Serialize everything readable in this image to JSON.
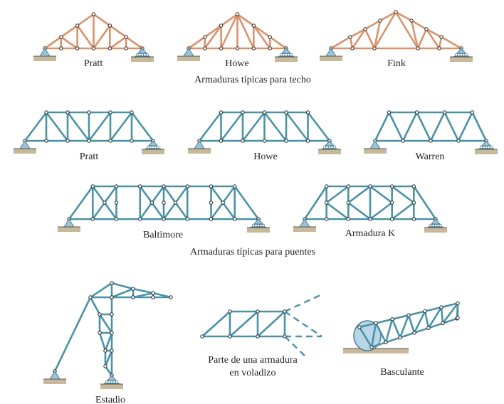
{
  "roof_trusses": {
    "caption": "Armaduras típicas para techo",
    "items": [
      {
        "label": "Pratt"
      },
      {
        "label": "Howe"
      },
      {
        "label": "Fink"
      }
    ]
  },
  "bridge_trusses": {
    "caption": "Armaduras típicas para puentes",
    "items": [
      {
        "label": "Pratt"
      },
      {
        "label": "Howe"
      },
      {
        "label": "Warren"
      },
      {
        "label": "Baltimore"
      },
      {
        "label": "Armadura K"
      }
    ]
  },
  "other_trusses": {
    "items": [
      {
        "label": "Estadio"
      },
      {
        "lines": [
          "Parte de una armadura",
          "en voladizo"
        ]
      },
      {
        "label": "Basculante"
      }
    ]
  }
}
